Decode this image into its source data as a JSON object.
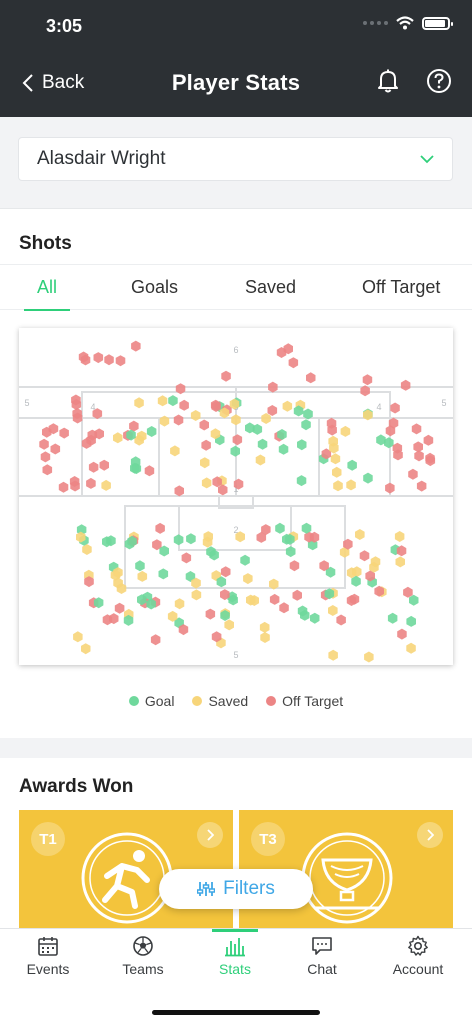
{
  "status_bar": {
    "time": "3:05"
  },
  "nav": {
    "back_label": "Back",
    "title": "Player Stats"
  },
  "player_select": {
    "selected": "Alasdair Wright"
  },
  "shots": {
    "title": "Shots",
    "tabs": [
      "All",
      "Goals",
      "Saved",
      "Off Target"
    ],
    "active_tab": "All",
    "zone_labels": {
      "top_center": "6",
      "left": "5",
      "right": "5",
      "mid_left": "4",
      "mid_center": "3",
      "mid_right": "4",
      "bottom_center": "5",
      "box_center": "2",
      "goal_center": "1"
    },
    "legend": [
      "Goal",
      "Saved",
      "Off Target"
    ],
    "colors": {
      "goal": "#6fd89c",
      "saved": "#f7d57a",
      "off_target": "#ec8585"
    }
  },
  "awards": {
    "title": "Awards Won",
    "cards": [
      {
        "badge": "T1",
        "icon": "runner-emblem-icon"
      },
      {
        "badge": "T3",
        "icon": "trophy-emblem-icon"
      }
    ]
  },
  "filters_button": {
    "label": "Filters"
  },
  "bottom_nav": [
    {
      "label": "Events",
      "icon": "calendar-icon"
    },
    {
      "label": "Teams",
      "icon": "football-icon"
    },
    {
      "label": "Stats",
      "icon": "bar-chart-icon"
    },
    {
      "label": "Chat",
      "icon": "chat-icon"
    },
    {
      "label": "Account",
      "icon": "gear-icon"
    }
  ]
}
